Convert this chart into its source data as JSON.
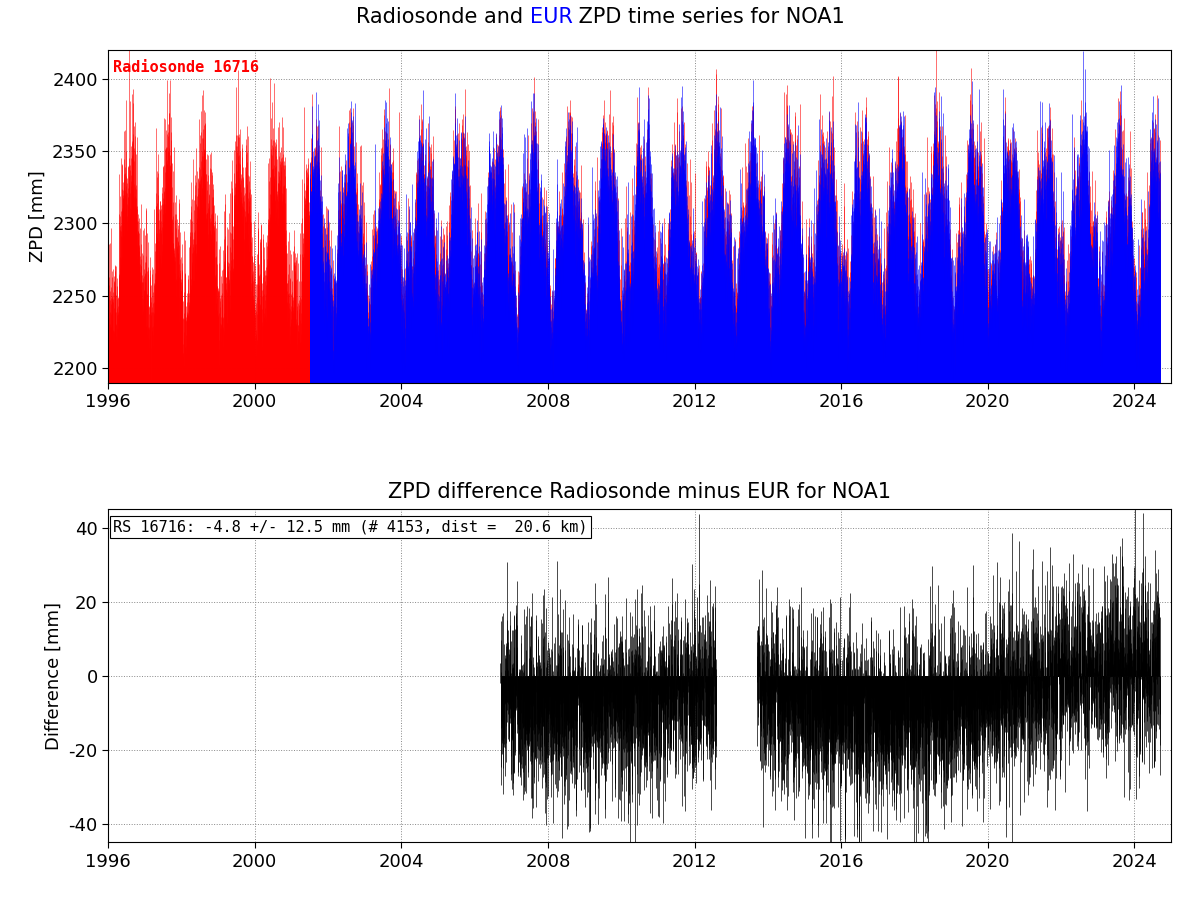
{
  "title1_parts": [
    "Radiosonde and ",
    "EUR",
    " ZPD time series for NOA1"
  ],
  "title2": "ZPD difference Radiosonde minus EUR for NOA1",
  "ylabel1": "ZPD [mm]",
  "ylabel2": "Difference [mm]",
  "xlim": [
    1996,
    2025
  ],
  "xticks": [
    1996,
    2000,
    2004,
    2008,
    2012,
    2016,
    2020,
    2024
  ],
  "ylim1": [
    2190,
    2420
  ],
  "yticks1": [
    2200,
    2250,
    2300,
    2350,
    2400
  ],
  "ylim2": [
    -45,
    45
  ],
  "yticks2": [
    -40,
    -20,
    0,
    20,
    40
  ],
  "radiosonde_label": "Radiosonde 16716",
  "diff_label": "RS 16716: -4.8 +/- 12.5 mm (# 4153, dist =  20.6 km)",
  "red_color": "#ff0000",
  "blue_color": "#0000ff",
  "black_color": "#000000",
  "eur_color": "#0000ff",
  "data_start_year": 1996.0,
  "data_end_year": 2024.7,
  "red_start": 1996.0,
  "blue_start": 2001.5,
  "diff_start1": 2006.7,
  "diff_end1": 2012.6,
  "diff_start2": 2013.7,
  "diff_end2": 2024.7,
  "background_color": "#ffffff",
  "grid_color": "#888888",
  "title_fontsize": 15,
  "label_fontsize": 13,
  "annot_fontsize": 11
}
